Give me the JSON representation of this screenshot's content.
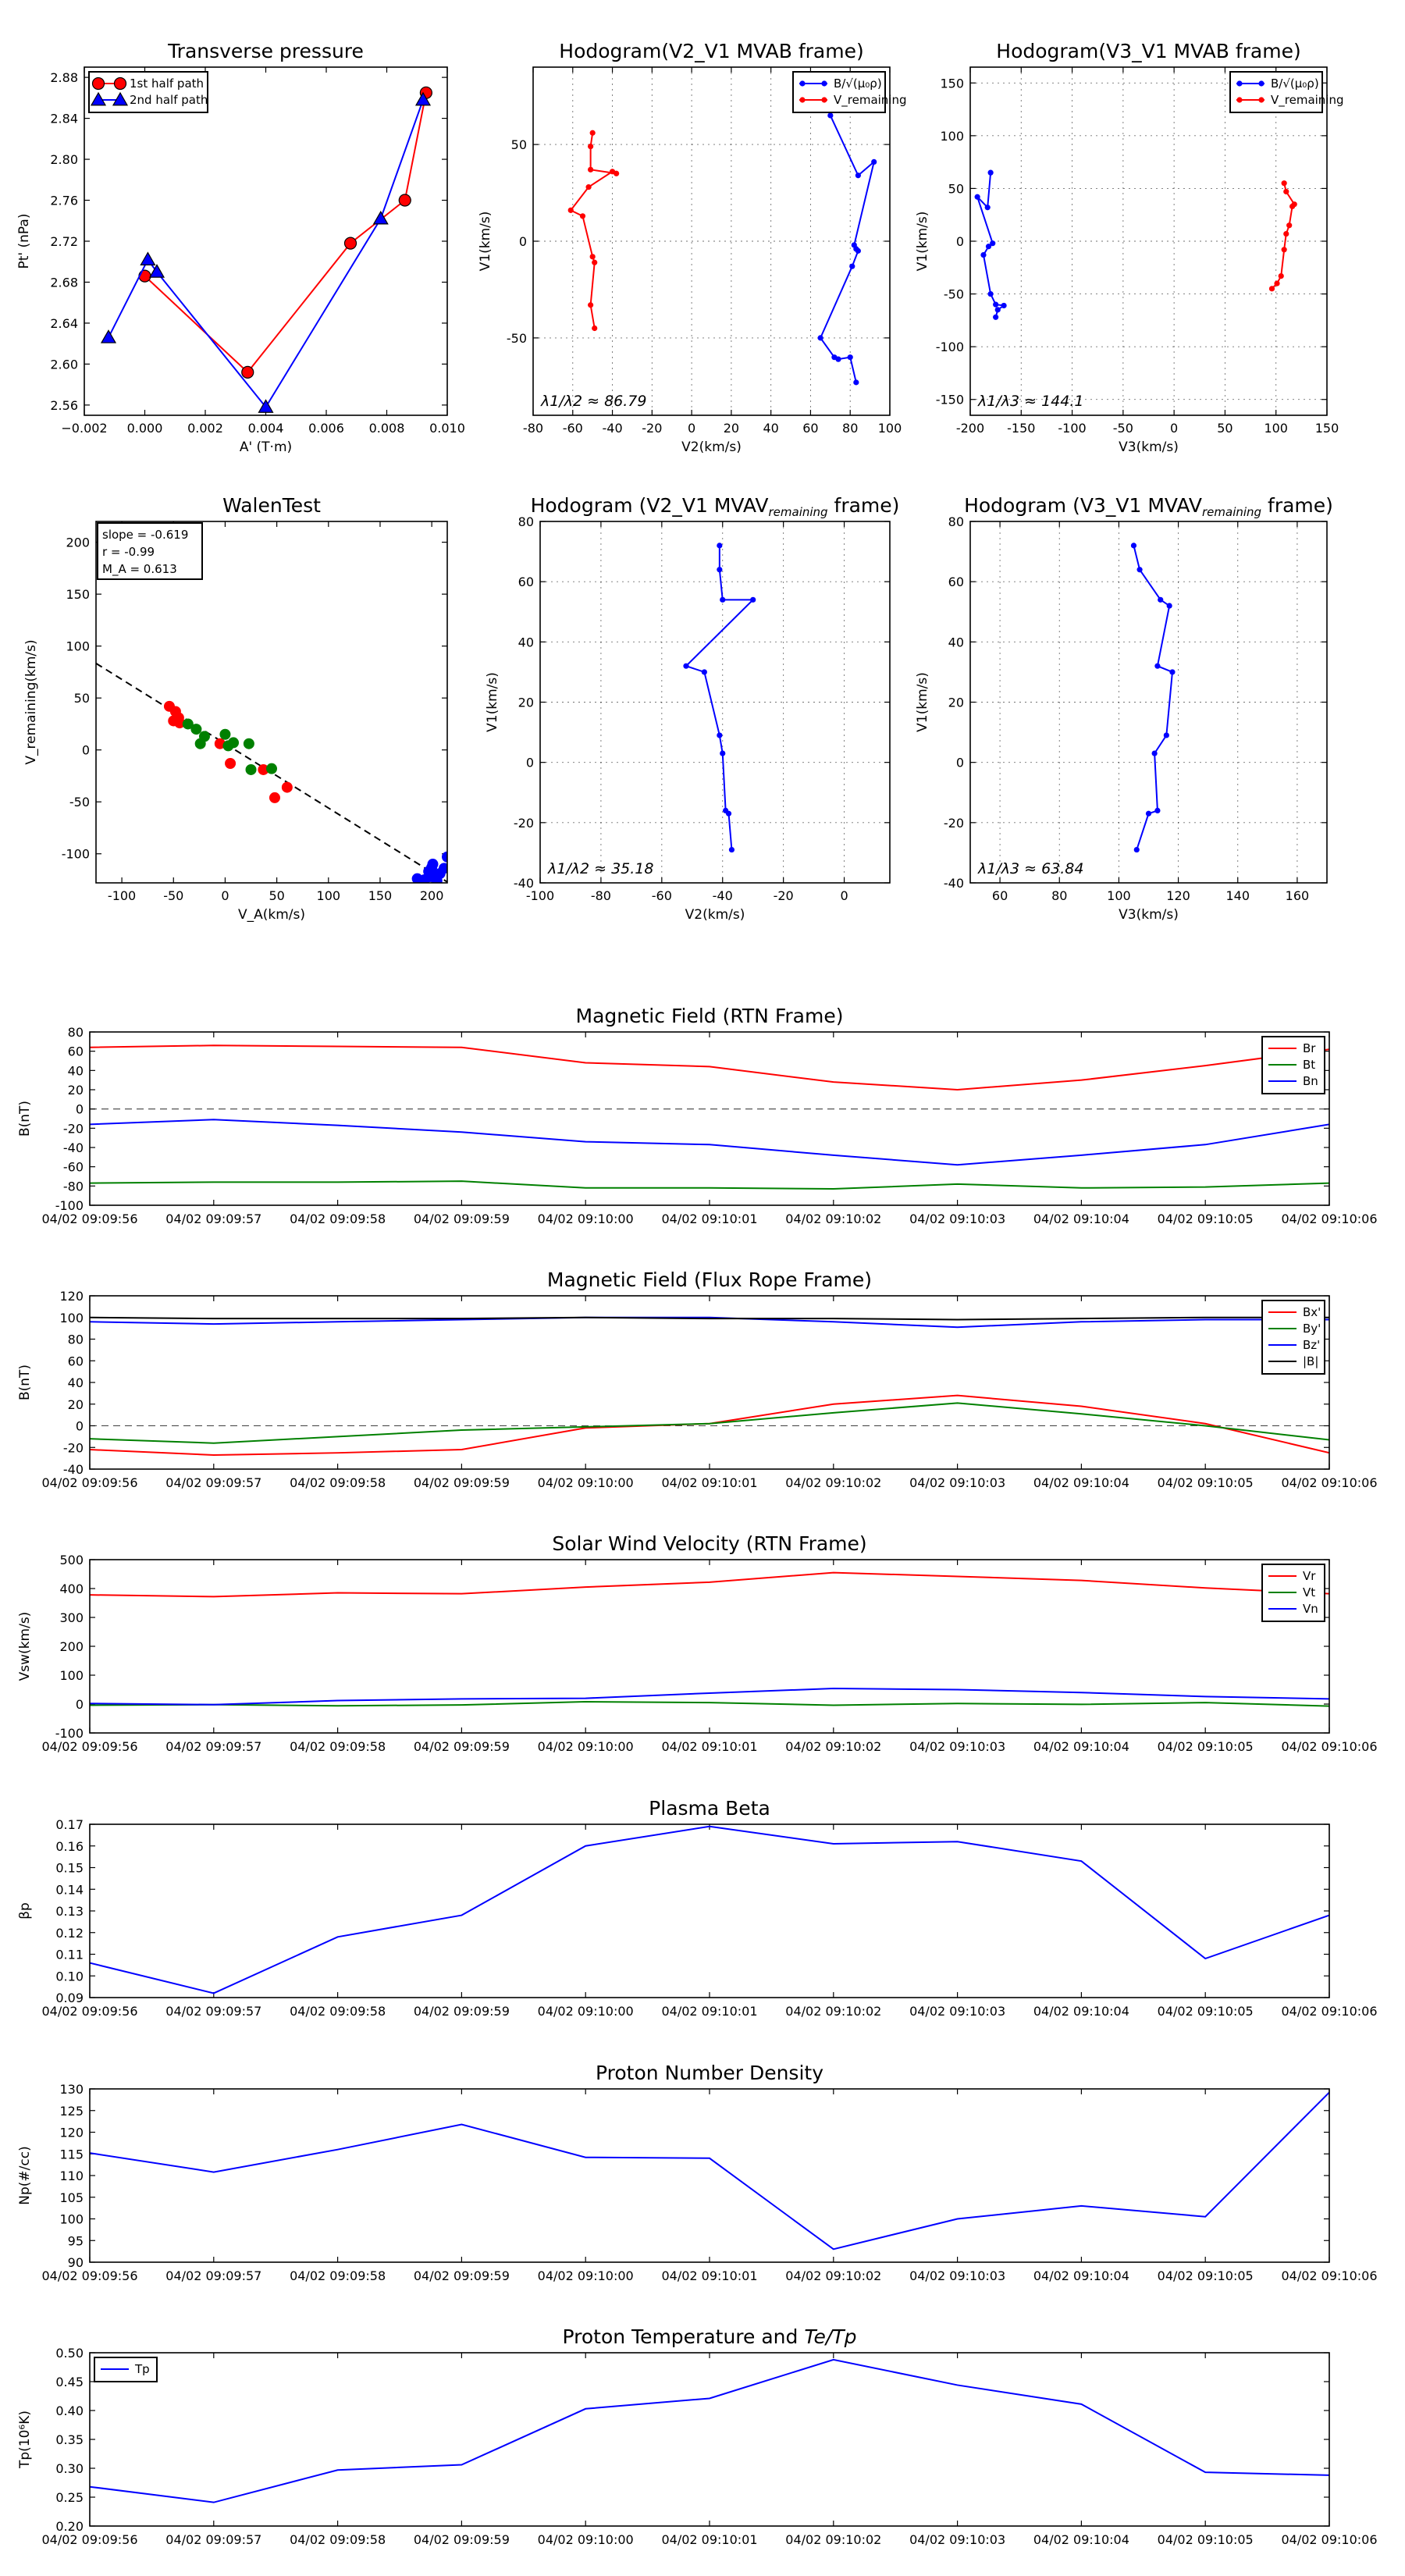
{
  "colors": {
    "red": "#ff0000",
    "blue": "#0000ff",
    "green": "#008000",
    "black": "#000000"
  },
  "chart_data": [
    {
      "id": "tp",
      "type": "line",
      "title": "Transverse pressure",
      "xlabel": "A' (T·m)",
      "ylabel": "Pt' (nPa)",
      "xlim": [
        -0.002,
        0.01
      ],
      "ylim": [
        2.55,
        2.89
      ],
      "xticks": [
        -0.002,
        0.0,
        0.002,
        0.004,
        0.006,
        0.008,
        0.01
      ],
      "xtick_labels": [
        "−0.002",
        "0.000",
        "0.002",
        "0.004",
        "0.006",
        "0.008",
        "0.010"
      ],
      "yticks": [
        2.56,
        2.6,
        2.64,
        2.68,
        2.72,
        2.76,
        2.8,
        2.84,
        2.88
      ],
      "ytick_labels": [
        "2.56",
        "2.60",
        "2.64",
        "2.68",
        "2.72",
        "2.76",
        "2.80",
        "2.84",
        "2.88"
      ],
      "legend": [
        "1st half path",
        "2nd half path"
      ],
      "series": [
        {
          "name": "1st half path",
          "color": "red",
          "marker": "circle",
          "x": [
            0.0,
            0.0034,
            0.0068,
            0.0086,
            0.0093
          ],
          "y": [
            2.686,
            2.592,
            2.718,
            2.76,
            2.865
          ]
        },
        {
          "name": "2nd half path",
          "color": "blue",
          "marker": "triangle",
          "x": [
            0.0092,
            0.0078,
            0.004,
            0.0004,
            0.0001,
            -0.0012
          ],
          "y": [
            2.858,
            2.742,
            2.558,
            2.69,
            2.702,
            2.626
          ]
        }
      ]
    },
    {
      "id": "h1",
      "type": "line",
      "title": "Hodogram(V2_V1 MVAB frame)",
      "xlabel": "V2(km/s)",
      "ylabel": "V1(km/s)",
      "xlim": [
        -80,
        100
      ],
      "ylim": [
        -90,
        90
      ],
      "grid": true,
      "xticks": [
        -80,
        -60,
        -40,
        -20,
        0,
        20,
        40,
        60,
        80,
        100
      ],
      "yticks": [
        -50,
        0,
        50
      ],
      "legend": [
        "B/√(μ₀ρ)",
        "V_remaining"
      ],
      "annotation": "λ1/λ2 ≈ 86.79",
      "series": [
        {
          "name": "B/√(μ₀ρ)",
          "color": "blue",
          "marker": "dot",
          "x": [
            70,
            84,
            92,
            82,
            83,
            84,
            81,
            65,
            72,
            74,
            80,
            83
          ],
          "y": [
            65,
            34,
            41,
            -2,
            -4,
            -5,
            -13,
            -50,
            -60,
            -61,
            -60,
            -73
          ]
        },
        {
          "name": "V_remaining",
          "color": "red",
          "marker": "dot",
          "x": [
            -50,
            -51,
            -51,
            -38,
            -40,
            -52,
            -61,
            -55,
            -50,
            -49,
            -51,
            -49
          ],
          "y": [
            56,
            49,
            37,
            35,
            36,
            28,
            16,
            13,
            -8,
            -11,
            -33,
            -45
          ]
        }
      ]
    },
    {
      "id": "h2",
      "type": "line",
      "title": "Hodogram(V3_V1 MVAB frame)",
      "xlabel": "V3(km/s)",
      "ylabel": "V1(km/s)",
      "xlim": [
        -200,
        150
      ],
      "ylim": [
        -165,
        165
      ],
      "grid": true,
      "xticks": [
        -200,
        -150,
        -100,
        -50,
        0,
        50,
        100,
        150
      ],
      "yticks": [
        -150,
        -100,
        -50,
        0,
        50,
        100,
        150
      ],
      "legend": [
        "B/√(μ₀ρ)",
        "V_remaining"
      ],
      "annotation": "λ1/λ3 ≈ 144.1",
      "series": [
        {
          "name": "B/√(μ₀ρ)",
          "color": "blue",
          "marker": "dot",
          "x": [
            -180,
            -183,
            -193,
            -178,
            -182,
            -187,
            -180,
            -175,
            -167,
            -173,
            -175
          ],
          "y": [
            65,
            32,
            42,
            -2,
            -5,
            -13,
            -50,
            -60,
            -61,
            -65,
            -72
          ]
        },
        {
          "name": "V_remaining",
          "color": "red",
          "marker": "dot",
          "x": [
            108,
            110,
            118,
            116,
            113,
            110,
            108,
            105,
            101,
            96
          ],
          "y": [
            55,
            47,
            35,
            33,
            15,
            7,
            -8,
            -33,
            -40,
            -45
          ]
        }
      ]
    },
    {
      "id": "walen",
      "type": "scatter",
      "title": "WalenTest",
      "xlabel": "V_A(km/s)",
      "ylabel": "V_remaining(km/s)",
      "xlim": [
        -125,
        215
      ],
      "ylim": [
        -128,
        220
      ],
      "xticks": [
        -100,
        -50,
        0,
        50,
        100,
        150,
        200
      ],
      "yticks": [
        -100,
        -50,
        0,
        50,
        100,
        150,
        200
      ],
      "stats": [
        "slope = -0.619",
        "r = -0.99",
        "M_A = 0.613"
      ],
      "fit_line": {
        "slope": -0.619,
        "intercept": 6
      },
      "series": [
        {
          "name": "red",
          "color": "red",
          "x": [
            -54,
            -48,
            -45,
            -50,
            -44,
            -5,
            5,
            37,
            48,
            60
          ],
          "y": [
            42,
            37,
            31,
            28,
            26,
            6,
            -13,
            -19,
            -46,
            -36
          ]
        },
        {
          "name": "green",
          "color": "green",
          "x": [
            -36,
            -28,
            -24,
            0,
            3,
            8,
            23,
            25,
            45,
            -20
          ],
          "y": [
            25,
            20,
            6,
            15,
            4,
            7,
            6,
            -19,
            -18,
            13
          ]
        },
        {
          "name": "blue",
          "color": "blue",
          "x": [
            186,
            193,
            197,
            200,
            203,
            205,
            208,
            212,
            215,
            198,
            201
          ],
          "y": [
            -124,
            -125,
            -117,
            -113,
            -120,
            -126,
            -119,
            -114,
            -103,
            -122,
            -110
          ]
        }
      ]
    },
    {
      "id": "h3",
      "type": "line",
      "title": "Hodogram (V2_V1 MVAV",
      "title_sub": "remaining",
      "title_tail": " frame)",
      "xlabel": "V2(km/s)",
      "ylabel": "V1(km/s)",
      "xlim": [
        -100,
        15
      ],
      "ylim": [
        -40,
        80
      ],
      "grid": true,
      "xticks": [
        -100,
        -80,
        -60,
        -40,
        -20,
        0
      ],
      "yticks": [
        -40,
        -20,
        0,
        20,
        40,
        60,
        80
      ],
      "annotation": "λ1/λ2 ≈ 35.18",
      "series": [
        {
          "name": "trace",
          "color": "blue",
          "marker": "dot",
          "x": [
            -41,
            -41,
            -40,
            -30,
            -52,
            -46,
            -41,
            -40,
            -39,
            -38,
            -37
          ],
          "y": [
            72,
            64,
            54,
            54,
            32,
            30,
            9,
            3,
            -16,
            -17,
            -29
          ]
        }
      ]
    },
    {
      "id": "h4",
      "type": "line",
      "title": "Hodogram (V3_V1 MVAV",
      "title_sub": "remaining",
      "title_tail": " frame)",
      "xlabel": "V3(km/s)",
      "ylabel": "V1(km/s)",
      "xlim": [
        50,
        170
      ],
      "ylim": [
        -40,
        80
      ],
      "grid": true,
      "xticks": [
        60,
        80,
        100,
        120,
        140,
        160
      ],
      "yticks": [
        -40,
        -20,
        0,
        20,
        40,
        60,
        80
      ],
      "annotation": "λ1/λ3 ≈ 63.84",
      "series": [
        {
          "name": "trace",
          "color": "blue",
          "marker": "dot",
          "x": [
            105,
            107,
            114,
            117,
            113,
            118,
            116,
            112,
            113,
            110,
            106
          ],
          "y": [
            72,
            64,
            54,
            52,
            32,
            30,
            9,
            3,
            -16,
            -17,
            -29
          ]
        }
      ]
    },
    {
      "id": "ts1",
      "type": "line",
      "title": "Magnetic Field (RTN Frame)",
      "ylabel": "B(nT)",
      "ylim": [
        -100,
        80
      ],
      "yticks": [
        -100,
        -80,
        -60,
        -40,
        -20,
        0,
        20,
        40,
        60,
        80
      ],
      "zero_line": true,
      "legend": [
        "Br",
        "Bt",
        "Bn"
      ],
      "series": [
        {
          "name": "Br",
          "color": "red",
          "values": [
            64,
            66,
            65,
            64,
            48,
            44,
            28,
            20,
            30,
            45,
            62
          ]
        },
        {
          "name": "Bt",
          "color": "green",
          "values": [
            -77,
            -76,
            -76,
            -75,
            -82,
            -82,
            -83,
            -78,
            -82,
            -81,
            -77
          ]
        },
        {
          "name": "Bn",
          "color": "blue",
          "values": [
            -16,
            -11,
            -17,
            -24,
            -34,
            -37,
            -48,
            -58,
            -48,
            -37,
            -16
          ]
        }
      ]
    },
    {
      "id": "ts2",
      "type": "line",
      "title": "Magnetic Field (Flux Rope Frame)",
      "ylabel": "B(nT)",
      "ylim": [
        -40,
        120
      ],
      "yticks": [
        -40,
        -20,
        0,
        20,
        40,
        60,
        80,
        100,
        120
      ],
      "zero_line": true,
      "legend": [
        "Bx'",
        "By'",
        "Bz'",
        "|B|"
      ],
      "series": [
        {
          "name": "Bx'",
          "color": "red",
          "values": [
            -22,
            -27,
            -25,
            -22,
            -2,
            2,
            20,
            28,
            18,
            2,
            -25
          ]
        },
        {
          "name": "By'",
          "color": "green",
          "values": [
            -12,
            -16,
            -10,
            -4,
            -1,
            2,
            12,
            21,
            11,
            0,
            -13
          ]
        },
        {
          "name": "Bz'",
          "color": "blue",
          "values": [
            96,
            94,
            96,
            98,
            100,
            100,
            96,
            91,
            96,
            98,
            98
          ]
        },
        {
          "name": "|B|",
          "color": "black",
          "values": [
            100,
            99,
            99,
            99,
            100,
            99,
            99,
            98,
            99,
            100,
            100
          ]
        }
      ]
    },
    {
      "id": "ts3",
      "type": "line",
      "title": "Solar Wind Velocity (RTN Frame)",
      "ylabel": "Vsw(km/s)",
      "ylim": [
        -100,
        500
      ],
      "yticks": [
        -100,
        0,
        100,
        200,
        300,
        400,
        500
      ],
      "legend": [
        "Vr",
        "Vt",
        "Vn"
      ],
      "series": [
        {
          "name": "Vr",
          "color": "red",
          "values": [
            378,
            372,
            385,
            382,
            405,
            422,
            455,
            442,
            428,
            402,
            382
          ]
        },
        {
          "name": "Vt",
          "color": "green",
          "values": [
            -4,
            -2,
            -6,
            -3,
            8,
            5,
            -4,
            2,
            -1,
            5,
            -7
          ]
        },
        {
          "name": "Vn",
          "color": "blue",
          "values": [
            2,
            -2,
            12,
            18,
            20,
            38,
            54,
            50,
            40,
            26,
            18
          ]
        }
      ]
    },
    {
      "id": "ts4",
      "type": "line",
      "title": "Plasma Beta",
      "ylabel": "βp",
      "ylim": [
        0.09,
        0.17
      ],
      "yticks": [
        0.09,
        0.1,
        0.11,
        0.12,
        0.13,
        0.14,
        0.15,
        0.16,
        0.17
      ],
      "ytick_labels": [
        "0.09",
        "0.10",
        "0.11",
        "0.12",
        "0.13",
        "0.14",
        "0.15",
        "0.16",
        "0.17"
      ],
      "series": [
        {
          "name": "beta",
          "color": "blue",
          "values": [
            0.106,
            0.092,
            0.118,
            0.128,
            0.16,
            0.169,
            0.161,
            0.162,
            0.153,
            0.108,
            0.128
          ]
        }
      ]
    },
    {
      "id": "ts5",
      "type": "line",
      "title": "Proton Number Density",
      "ylabel": "Np(#/cc)",
      "ylim": [
        90,
        130
      ],
      "yticks": [
        90,
        95,
        100,
        105,
        110,
        115,
        120,
        125,
        130
      ],
      "series": [
        {
          "name": "Np",
          "color": "blue",
          "values": [
            115.2,
            110.8,
            116.0,
            121.8,
            114.2,
            114.0,
            93.0,
            100.0,
            103.0,
            100.5,
            129.2
          ]
        }
      ]
    },
    {
      "id": "ts6",
      "type": "line",
      "title": "Proton Temperature and ",
      "title_math": "Te/Tp",
      "ylabel": "Tp(10⁶K)",
      "ylim": [
        0.2,
        0.5
      ],
      "yticks": [
        0.2,
        0.25,
        0.3,
        0.35,
        0.4,
        0.45,
        0.5
      ],
      "ytick_labels": [
        "0.20",
        "0.25",
        "0.30",
        "0.35",
        "0.40",
        "0.45",
        "0.50"
      ],
      "legend": [
        "Tp"
      ],
      "legend_loc": "upper-left",
      "series": [
        {
          "name": "Tp",
          "color": "blue",
          "values": [
            0.268,
            0.241,
            0.297,
            0.306,
            0.403,
            0.421,
            0.488,
            0.444,
            0.411,
            0.293,
            0.288
          ]
        }
      ]
    }
  ],
  "time_labels": [
    "04/02 09:09:56",
    "04/02 09:09:57",
    "04/02 09:09:58",
    "04/02 09:09:59",
    "04/02 09:10:00",
    "04/02 09:10:01",
    "04/02 09:10:02",
    "04/02 09:10:03",
    "04/02 09:10:04",
    "04/02 09:10:05",
    "04/02 09:10:06"
  ]
}
